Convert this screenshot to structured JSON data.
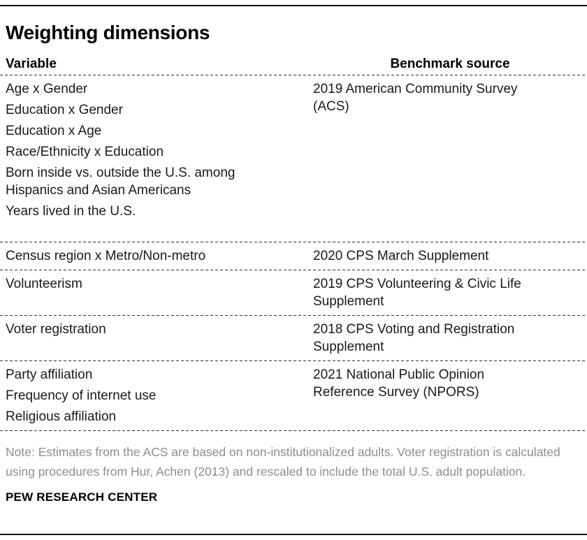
{
  "title": "Weighting dimensions",
  "table": {
    "columns": {
      "variable": "Variable",
      "benchmark": "Benchmark source"
    },
    "rows": [
      {
        "variables": [
          "Age x Gender",
          "Education x Gender",
          "Education x Age",
          "Race/Ethnicity x Education",
          "Born inside vs. outside the U.S. among Hispanics and Asian Americans",
          "Years lived in the U.S."
        ],
        "source": "2019 American Community Survey (ACS)"
      },
      {
        "variables": [
          "Census region x Metro/Non-metro"
        ],
        "source": "2020 CPS March Supplement"
      },
      {
        "variables": [
          "Volunteerism"
        ],
        "source": "2019 CPS Volunteering & Civic Life Supplement"
      },
      {
        "variables": [
          "Voter registration"
        ],
        "source": "2018 CPS Voting and Registration Supplement"
      },
      {
        "variables": [
          "Party affiliation",
          "Frequency of internet use",
          "Religious affiliation"
        ],
        "source": "2021 National Public Opinion Reference Survey (NPORS)"
      }
    ]
  },
  "note": "Note: Estimates from the ACS are based on non-institutionalized adults. Voter registration is calculated using procedures from Hur, Achen (2013) and rescaled to include the total U.S. adult population.",
  "footer": "PEW RESEARCH CENTER",
  "colors": {
    "text": "#1a1a1a",
    "note_text": "#8e8e8e",
    "rule": "#000000",
    "dashed_rule": "#2e2e2e"
  }
}
